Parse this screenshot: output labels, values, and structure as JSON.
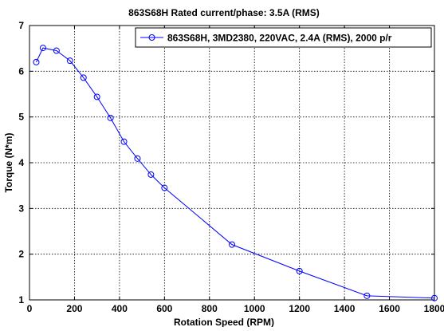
{
  "chart_data": {
    "type": "line",
    "title": "863S68H Rated current/phase: 3.5A (RMS)",
    "xlabel": "Rotation Speed (RPM)",
    "ylabel": "Torque (N*m)",
    "xlim": [
      0,
      1800
    ],
    "ylim": [
      1,
      7
    ],
    "xticks": [
      0,
      200,
      400,
      600,
      800,
      1000,
      1200,
      1400,
      1600,
      1800
    ],
    "yticks": [
      1,
      2,
      3,
      4,
      5,
      6,
      7
    ],
    "grid": true,
    "legend_position": "top-right",
    "series": [
      {
        "name": "863S68H, 3MD2380, 220VAC, 2.4A (RMS), 2000 p/r",
        "color": "#0000ff",
        "marker": "circle",
        "x": [
          30,
          60,
          120,
          180,
          240,
          300,
          360,
          420,
          480,
          540,
          600,
          900,
          1200,
          1500,
          1800
        ],
        "y": [
          6.2,
          6.51,
          6.45,
          6.23,
          5.86,
          5.44,
          4.98,
          4.46,
          4.09,
          3.74,
          3.45,
          2.21,
          1.63,
          1.09,
          1.04
        ]
      }
    ]
  }
}
